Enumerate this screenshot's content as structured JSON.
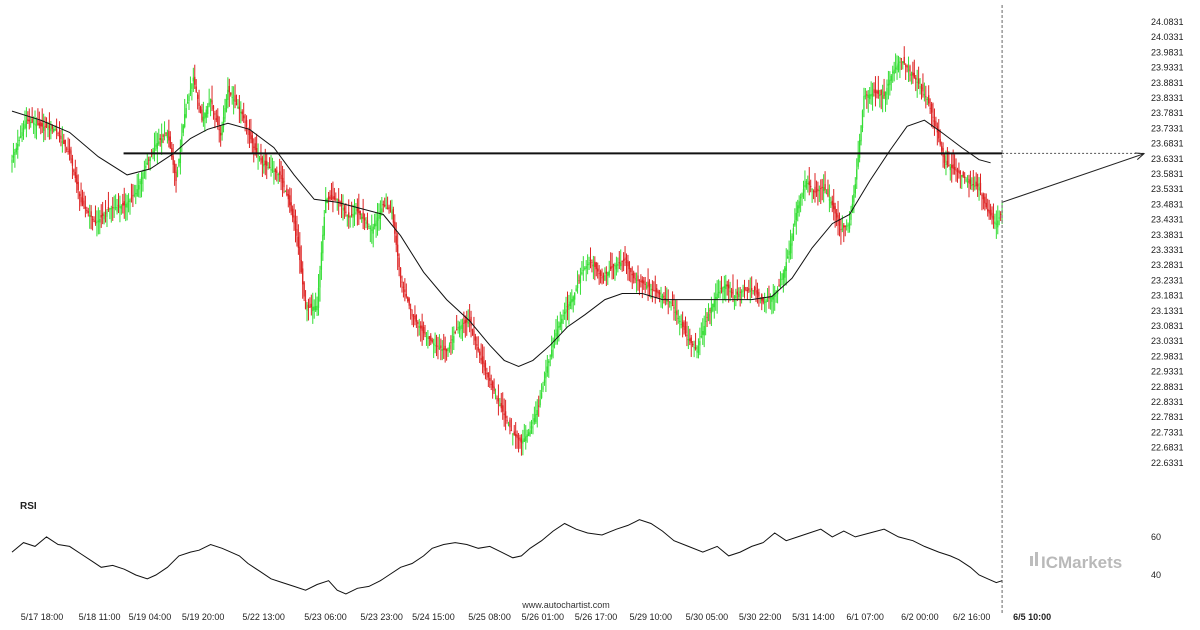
{
  "chart_data": {
    "type": "candlestick",
    "colors": {
      "up": "#33dd33",
      "down": "#dd2222",
      "ma": "#111111",
      "level": "#111111",
      "rsi": "#111111"
    },
    "price_axis": {
      "ylim": [
        22.5831,
        24.0831
      ],
      "ticks": [
        "24.0831",
        "24.0331",
        "23.9831",
        "23.9331",
        "23.8831",
        "23.8331",
        "23.7831",
        "23.7331",
        "23.6831",
        "23.6331",
        "23.5831",
        "23.5331",
        "23.4831",
        "23.4331",
        "23.3831",
        "23.3331",
        "23.2831",
        "23.2331",
        "23.1831",
        "23.1331",
        "23.0831",
        "23.0331",
        "22.9831",
        "22.9331",
        "22.8831",
        "22.8331",
        "22.7831",
        "22.7331",
        "22.6831",
        "22.6331"
      ]
    },
    "x_axis": {
      "ticks": [
        "5/17 18:00",
        "5/18 11:00",
        "5/19 04:00",
        "5/19 20:00",
        "5/22 13:00",
        "5/23 06:00",
        "5/23 23:00",
        "5/24 15:00",
        "5/25 08:00",
        "5/26 01:00",
        "5/26 17:00",
        "5/29 10:00",
        "5/30 05:00",
        "5/30 22:00",
        "5/31 14:00",
        "6/1 07:00",
        "6/2 00:00",
        "6/2 16:00",
        "6/5 10:00"
      ]
    },
    "close_path": [
      [
        0,
        23.63
      ],
      [
        10,
        23.76
      ],
      [
        20,
        23.74
      ],
      [
        30,
        23.73
      ],
      [
        40,
        23.65
      ],
      [
        48,
        23.49
      ],
      [
        58,
        23.42
      ],
      [
        68,
        23.47
      ],
      [
        78,
        23.48
      ],
      [
        86,
        23.52
      ],
      [
        92,
        23.6
      ],
      [
        100,
        23.68
      ],
      [
        108,
        23.72
      ],
      [
        114,
        23.56
      ],
      [
        120,
        23.78
      ],
      [
        126,
        23.9
      ],
      [
        132,
        23.76
      ],
      [
        138,
        23.83
      ],
      [
        145,
        23.71
      ],
      [
        150,
        23.86
      ],
      [
        160,
        23.78
      ],
      [
        168,
        23.67
      ],
      [
        174,
        23.62
      ],
      [
        180,
        23.6
      ],
      [
        186,
        23.58
      ],
      [
        192,
        23.5
      ],
      [
        198,
        23.38
      ],
      [
        204,
        23.14
      ],
      [
        212,
        23.15
      ],
      [
        218,
        23.5
      ],
      [
        226,
        23.5
      ],
      [
        234,
        23.44
      ],
      [
        240,
        23.46
      ],
      [
        250,
        23.4
      ],
      [
        258,
        23.48
      ],
      [
        264,
        23.46
      ],
      [
        270,
        23.24
      ],
      [
        278,
        23.12
      ],
      [
        286,
        23.06
      ],
      [
        294,
        23.02
      ],
      [
        302,
        23.0
      ],
      [
        310,
        23.08
      ],
      [
        318,
        23.1
      ],
      [
        326,
        22.97
      ],
      [
        334,
        22.88
      ],
      [
        342,
        22.79
      ],
      [
        348,
        22.73
      ],
      [
        354,
        22.7
      ],
      [
        360,
        22.74
      ],
      [
        366,
        22.82
      ],
      [
        372,
        22.95
      ],
      [
        378,
        23.06
      ],
      [
        384,
        23.13
      ],
      [
        390,
        23.18
      ],
      [
        396,
        23.26
      ],
      [
        402,
        23.3
      ],
      [
        410,
        23.24
      ],
      [
        418,
        23.28
      ],
      [
        426,
        23.3
      ],
      [
        432,
        23.24
      ],
      [
        440,
        23.22
      ],
      [
        446,
        23.2
      ],
      [
        452,
        23.18
      ],
      [
        458,
        23.16
      ],
      [
        464,
        23.1
      ],
      [
        470,
        23.04
      ],
      [
        476,
        23.0
      ],
      [
        482,
        23.1
      ],
      [
        490,
        23.19
      ],
      [
        496,
        23.22
      ],
      [
        502,
        23.18
      ],
      [
        508,
        23.2
      ],
      [
        516,
        23.2
      ],
      [
        522,
        23.16
      ],
      [
        528,
        23.18
      ],
      [
        534,
        23.22
      ],
      [
        540,
        23.33
      ],
      [
        546,
        23.48
      ],
      [
        552,
        23.56
      ],
      [
        558,
        23.52
      ],
      [
        564,
        23.54
      ],
      [
        570,
        23.48
      ],
      [
        576,
        23.4
      ],
      [
        582,
        23.42
      ],
      [
        586,
        23.55
      ],
      [
        592,
        23.84
      ],
      [
        600,
        23.85
      ],
      [
        606,
        23.84
      ],
      [
        612,
        23.92
      ],
      [
        618,
        23.96
      ],
      [
        624,
        23.92
      ],
      [
        630,
        23.88
      ],
      [
        636,
        23.83
      ],
      [
        642,
        23.74
      ],
      [
        648,
        23.62
      ],
      [
        654,
        23.6
      ],
      [
        660,
        23.58
      ],
      [
        666,
        23.55
      ],
      [
        672,
        23.54
      ],
      [
        678,
        23.46
      ],
      [
        684,
        23.42
      ],
      [
        688,
        23.46
      ]
    ],
    "ma_path": [
      [
        0,
        23.79
      ],
      [
        20,
        23.76
      ],
      [
        40,
        23.72
      ],
      [
        60,
        23.64
      ],
      [
        80,
        23.58
      ],
      [
        96,
        23.6
      ],
      [
        112,
        23.65
      ],
      [
        124,
        23.7
      ],
      [
        136,
        23.73
      ],
      [
        150,
        23.75
      ],
      [
        165,
        23.73
      ],
      [
        182,
        23.67
      ],
      [
        196,
        23.58
      ],
      [
        210,
        23.5
      ],
      [
        226,
        23.49
      ],
      [
        242,
        23.47
      ],
      [
        258,
        23.45
      ],
      [
        270,
        23.38
      ],
      [
        286,
        23.26
      ],
      [
        302,
        23.17
      ],
      [
        318,
        23.1
      ],
      [
        332,
        23.02
      ],
      [
        342,
        22.97
      ],
      [
        352,
        22.95
      ],
      [
        362,
        22.97
      ],
      [
        374,
        23.02
      ],
      [
        386,
        23.08
      ],
      [
        398,
        23.12
      ],
      [
        412,
        23.17
      ],
      [
        424,
        23.19
      ],
      [
        438,
        23.19
      ],
      [
        452,
        23.17
      ],
      [
        468,
        23.17
      ],
      [
        484,
        23.17
      ],
      [
        500,
        23.17
      ],
      [
        514,
        23.17
      ],
      [
        528,
        23.18
      ],
      [
        542,
        23.24
      ],
      [
        556,
        23.34
      ],
      [
        570,
        23.42
      ],
      [
        582,
        23.45
      ],
      [
        596,
        23.56
      ],
      [
        610,
        23.66
      ],
      [
        622,
        23.74
      ],
      [
        634,
        23.76
      ],
      [
        646,
        23.72
      ],
      [
        660,
        23.67
      ],
      [
        672,
        23.63
      ],
      [
        680,
        23.62
      ]
    ],
    "horizontal_level": 23.651,
    "projection": {
      "from": [
        688,
        23.49
      ],
      "to": [
        788,
        23.65
      ]
    },
    "vertical_marker_x": 688,
    "x_tick_index": [
      0,
      40,
      75,
      112,
      154,
      197,
      236,
      272,
      311,
      348,
      385,
      423,
      462,
      499,
      536,
      572,
      610,
      646,
      688
    ],
    "rsi": {
      "title": "RSI",
      "ylim": [
        30,
        72
      ],
      "ticks": [
        60,
        40
      ],
      "values": [
        [
          0,
          52
        ],
        [
          8,
          57
        ],
        [
          16,
          55
        ],
        [
          24,
          60
        ],
        [
          32,
          56
        ],
        [
          40,
          55
        ],
        [
          48,
          51
        ],
        [
          56,
          47
        ],
        [
          62,
          44
        ],
        [
          70,
          45
        ],
        [
          78,
          43
        ],
        [
          86,
          40
        ],
        [
          94,
          38
        ],
        [
          100,
          40
        ],
        [
          108,
          44
        ],
        [
          116,
          50
        ],
        [
          124,
          52
        ],
        [
          130,
          53
        ],
        [
          138,
          56
        ],
        [
          146,
          54
        ],
        [
          152,
          52
        ],
        [
          158,
          50
        ],
        [
          164,
          46
        ],
        [
          172,
          42
        ],
        [
          180,
          38
        ],
        [
          188,
          36
        ],
        [
          196,
          34
        ],
        [
          204,
          32
        ],
        [
          212,
          35
        ],
        [
          220,
          37
        ],
        [
          226,
          32
        ],
        [
          232,
          30
        ],
        [
          240,
          33
        ],
        [
          248,
          34
        ],
        [
          256,
          37
        ],
        [
          262,
          40
        ],
        [
          270,
          44
        ],
        [
          278,
          46
        ],
        [
          286,
          50
        ],
        [
          292,
          54
        ],
        [
          300,
          56
        ],
        [
          308,
          57
        ],
        [
          316,
          56
        ],
        [
          324,
          54
        ],
        [
          332,
          55
        ],
        [
          340,
          52
        ],
        [
          348,
          49
        ],
        [
          354,
          50
        ],
        [
          360,
          54
        ],
        [
          368,
          58
        ],
        [
          376,
          63
        ],
        [
          384,
          67
        ],
        [
          392,
          64
        ],
        [
          400,
          62
        ],
        [
          410,
          61
        ],
        [
          420,
          64
        ],
        [
          428,
          66
        ],
        [
          436,
          69
        ],
        [
          444,
          67
        ],
        [
          452,
          63
        ],
        [
          460,
          58
        ],
        [
          470,
          55
        ],
        [
          480,
          52
        ],
        [
          490,
          55
        ],
        [
          498,
          50
        ],
        [
          506,
          52
        ],
        [
          514,
          55
        ],
        [
          522,
          57
        ],
        [
          530,
          62
        ],
        [
          538,
          58
        ],
        [
          546,
          60
        ],
        [
          554,
          62
        ],
        [
          562,
          64
        ],
        [
          570,
          60
        ],
        [
          578,
          63
        ],
        [
          586,
          60
        ],
        [
          596,
          62
        ],
        [
          606,
          64
        ],
        [
          616,
          60
        ],
        [
          626,
          58
        ],
        [
          634,
          55
        ],
        [
          644,
          52
        ],
        [
          652,
          50
        ],
        [
          658,
          48
        ],
        [
          666,
          44
        ],
        [
          672,
          40
        ],
        [
          678,
          38
        ],
        [
          684,
          36
        ],
        [
          688,
          37
        ]
      ]
    },
    "x_domain": [
      0,
      788
    ],
    "source_label": "www.autochartist.com",
    "watermark": "ICMarkets"
  }
}
